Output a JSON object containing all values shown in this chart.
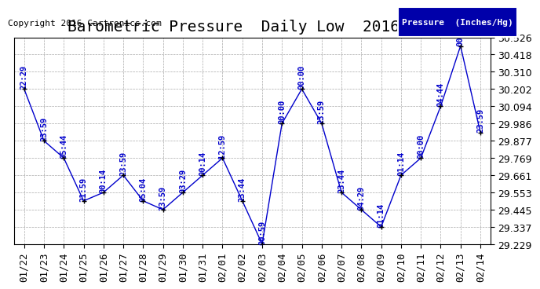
{
  "title": "Barometric Pressure  Daily Low  20160215",
  "copyright": "Copyright 2016 Cartronics.com",
  "legend_label": "Pressure  (Inches/Hg)",
  "dates": [
    "01/22",
    "01/23",
    "01/24",
    "01/25",
    "01/26",
    "01/27",
    "01/28",
    "01/29",
    "01/30",
    "01/31",
    "02/01",
    "02/02",
    "02/03",
    "02/04",
    "02/05",
    "02/06",
    "02/07",
    "02/08",
    "02/09",
    "02/10",
    "02/11",
    "02/12",
    "02/13",
    "02/14"
  ],
  "values": [
    30.202,
    29.877,
    29.769,
    29.5,
    29.553,
    29.661,
    29.5,
    29.445,
    29.553,
    29.661,
    29.769,
    29.5,
    29.229,
    29.986,
    30.202,
    29.986,
    29.553,
    29.445,
    29.337,
    29.661,
    29.769,
    30.094,
    30.472,
    29.93
  ],
  "times": [
    "22:29",
    "23:59",
    "05:44",
    "21:59",
    "00:14",
    "23:59",
    "05:04",
    "23:59",
    "03:29",
    "00:14",
    "12:59",
    "23:44",
    "00:59",
    "00:00",
    "00:00",
    "23:59",
    "23:44",
    "04:29",
    "01:14",
    "01:14",
    "00:00",
    "04:44",
    "00:00",
    "23:59"
  ],
  "ylim": [
    29.229,
    30.526
  ],
  "yticks": [
    29.229,
    29.337,
    29.445,
    29.553,
    29.661,
    29.769,
    29.877,
    29.986,
    30.094,
    30.202,
    30.31,
    30.418,
    30.526
  ],
  "line_color": "#0000cc",
  "marker_color": "#000000",
  "bg_color": "#ffffff",
  "grid_color": "#aaaaaa",
  "title_color": "#000000",
  "label_color": "#0000cc",
  "title_fontsize": 14,
  "tick_fontsize": 9,
  "annotation_fontsize": 7.5,
  "copyright_fontsize": 8
}
